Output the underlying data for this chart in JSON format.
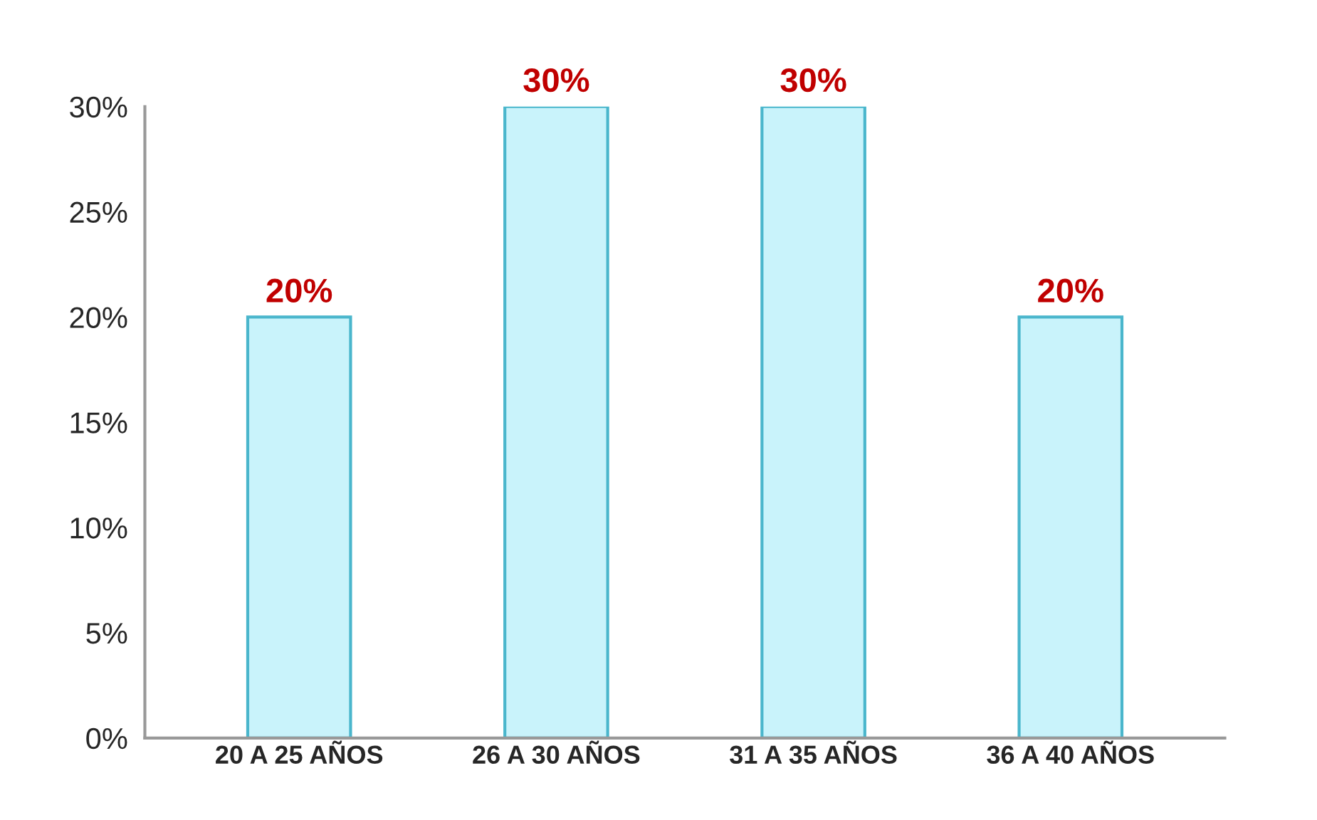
{
  "chart_data": {
    "type": "bar",
    "categories": [
      "20 A 25 AÑOS",
      "26 A 30 AÑOS",
      "31 A 35 AÑOS",
      "36 A 40 AÑOS"
    ],
    "values": [
      20,
      30,
      30,
      20
    ],
    "value_labels": [
      "20%",
      "30%",
      "30%",
      "20%"
    ],
    "color": "#c9f3fb",
    "ylim": [
      0,
      30
    ],
    "yticks": [
      {
        "value": 0,
        "label": "0%"
      },
      {
        "value": 5,
        "label": "5%"
      },
      {
        "value": 10,
        "label": "10%"
      },
      {
        "value": 15,
        "label": "15%"
      },
      {
        "value": 20,
        "label": "20%"
      },
      {
        "value": 25,
        "label": "25%"
      },
      {
        "value": 30,
        "label": "30%"
      }
    ],
    "grid": false,
    "legend": false
  }
}
